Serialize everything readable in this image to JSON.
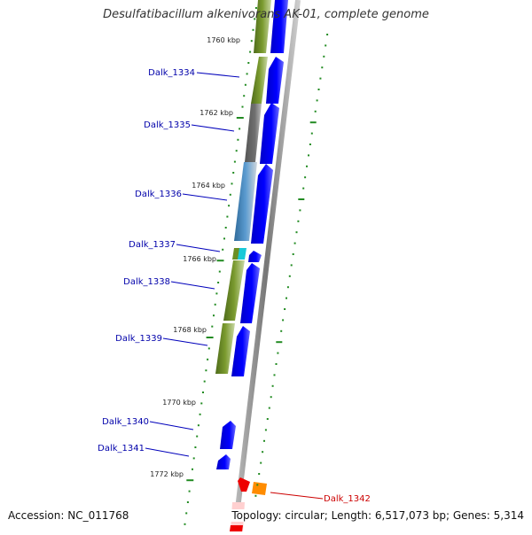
{
  "title": "Desulfatibacillum alkenivorans AK-01, complete genome",
  "footer": {
    "accession": "Accession: NC_011768",
    "stats": "Topology: circular; Length: 6,517,073 bp; Genes: 5,314"
  },
  "scale": {
    "ticks": [
      "1760 kbp",
      "1762 kbp",
      "1764 kbp",
      "1766 kbp",
      "1768 kbp",
      "1770 kbp",
      "1772 kbp"
    ]
  },
  "genes": [
    {
      "id": "Dalk_1334",
      "color": "blue"
    },
    {
      "id": "Dalk_1335",
      "color": "blue"
    },
    {
      "id": "Dalk_1336",
      "color": "blue"
    },
    {
      "id": "Dalk_1337",
      "color": "blue"
    },
    {
      "id": "Dalk_1338",
      "color": "blue"
    },
    {
      "id": "Dalk_1339",
      "color": "blue"
    },
    {
      "id": "Dalk_1340",
      "color": "blue"
    },
    {
      "id": "Dalk_1341",
      "color": "blue"
    },
    {
      "id": "Dalk_1342",
      "color": "red"
    }
  ],
  "colors": {
    "gene_forward": "#0000ee",
    "gene_highlight": "#ee0000",
    "gene_orange": "#ff8800",
    "cog_green": "#6b8e23",
    "cog_gray": "#666666",
    "cog_blue": "#4682b4",
    "cog_cyan": "#00bcd4",
    "backbone": "#888888",
    "tick_green": "#228b22",
    "label_blue": "#0000aa",
    "label_red": "#cc0000"
  }
}
